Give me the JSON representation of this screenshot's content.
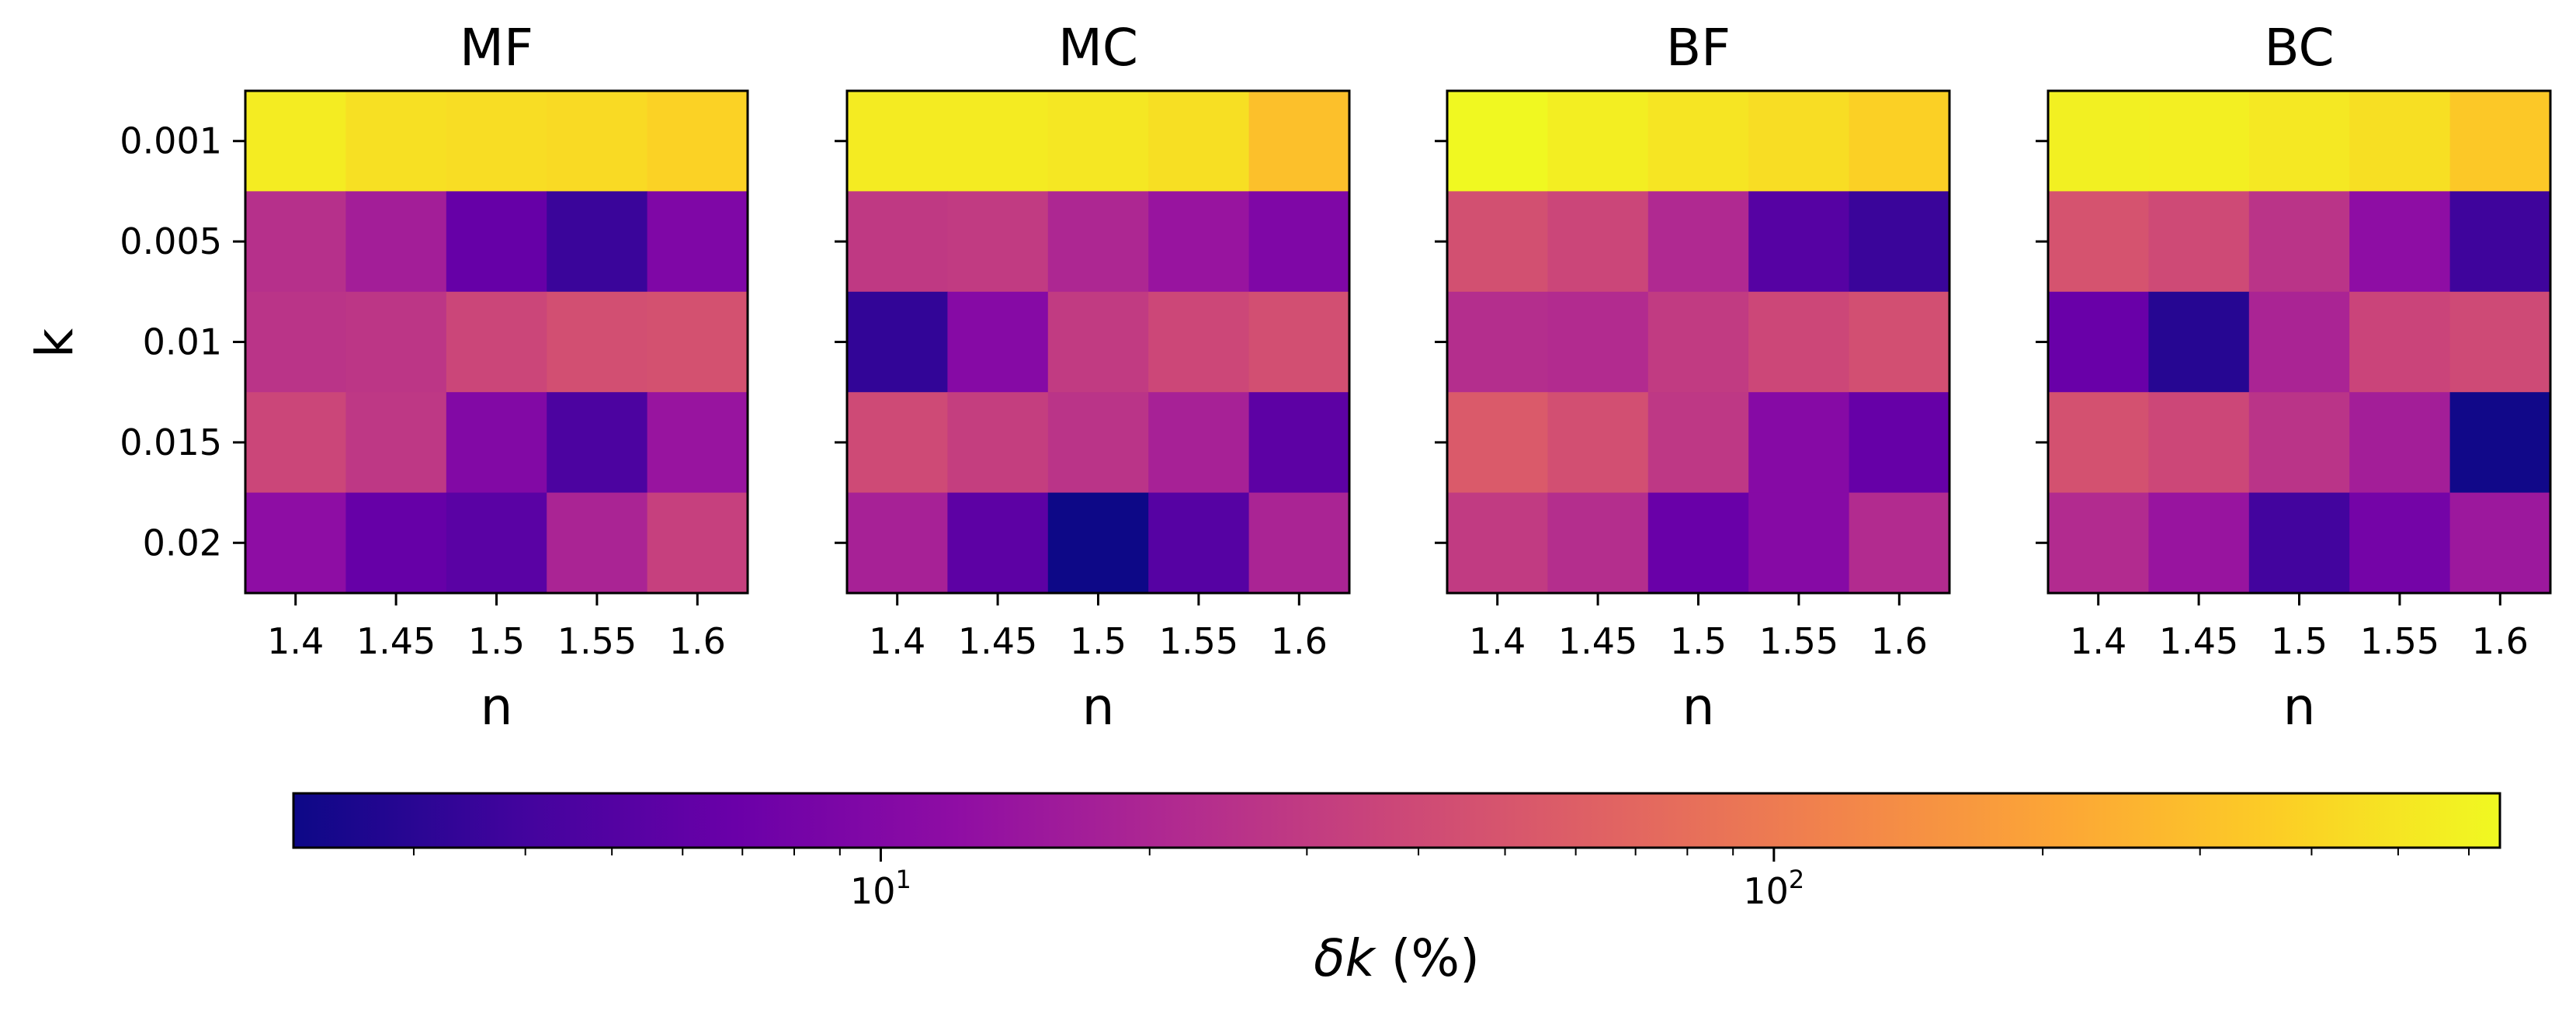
{
  "chart_data": {
    "type": "heatmap",
    "colormap": "plasma",
    "scale": "log",
    "value_range": [
      2.2,
      650
    ],
    "x_axis": {
      "label": "n",
      "ticks": [
        "1.4",
        "1.45",
        "1.5",
        "1.55",
        "1.6"
      ]
    },
    "y_axis": {
      "label": "k",
      "ticks": [
        "0.001",
        "0.005",
        "0.01",
        "0.015",
        "0.02"
      ]
    },
    "colorbar": {
      "label_symbol": "δk",
      "label_unit": "(%)",
      "major_ticks": [
        {
          "base": "10",
          "exp": "1",
          "value": 10
        },
        {
          "base": "10",
          "exp": "2",
          "value": 100
        }
      ],
      "minor_ticks": [
        3,
        4,
        5,
        6,
        7,
        8,
        9,
        20,
        30,
        40,
        50,
        60,
        70,
        80,
        90,
        200,
        300,
        400,
        500,
        600
      ]
    },
    "panels": [
      {
        "title": "MF",
        "values": [
          [
            550,
            470,
            450,
            430,
            390
          ],
          [
            24,
            17,
            6.5,
            3.6,
            9.5
          ],
          [
            26,
            27,
            37,
            44,
            46
          ],
          [
            37,
            28,
            10,
            4.5,
            14
          ],
          [
            12,
            6.5,
            5.5,
            19,
            33
          ]
        ]
      },
      {
        "title": "MC",
        "values": [
          [
            540,
            540,
            510,
            460,
            300
          ],
          [
            29,
            30,
            20,
            14,
            9.5
          ],
          [
            3.3,
            10.5,
            30,
            38,
            44
          ],
          [
            40,
            32,
            26,
            18,
            5.7
          ],
          [
            18,
            5.7,
            2.2,
            5.2,
            19
          ]
        ]
      },
      {
        "title": "BF",
        "values": [
          [
            640,
            560,
            500,
            450,
            380
          ],
          [
            45,
            37,
            21,
            5.2,
            3.6
          ],
          [
            23,
            22,
            30,
            38,
            44
          ],
          [
            55,
            44,
            28,
            10.5,
            6.5
          ],
          [
            30,
            23,
            6.8,
            10.5,
            22
          ]
        ]
      },
      {
        "title": "BC",
        "values": [
          [
            580,
            570,
            520,
            460,
            340
          ],
          [
            48,
            40,
            26,
            12,
            3.8
          ],
          [
            6.8,
            2.9,
            19,
            36,
            40
          ],
          [
            46,
            38,
            26,
            17,
            2.3
          ],
          [
            22,
            14,
            4.0,
            8.0,
            15
          ]
        ]
      }
    ]
  }
}
